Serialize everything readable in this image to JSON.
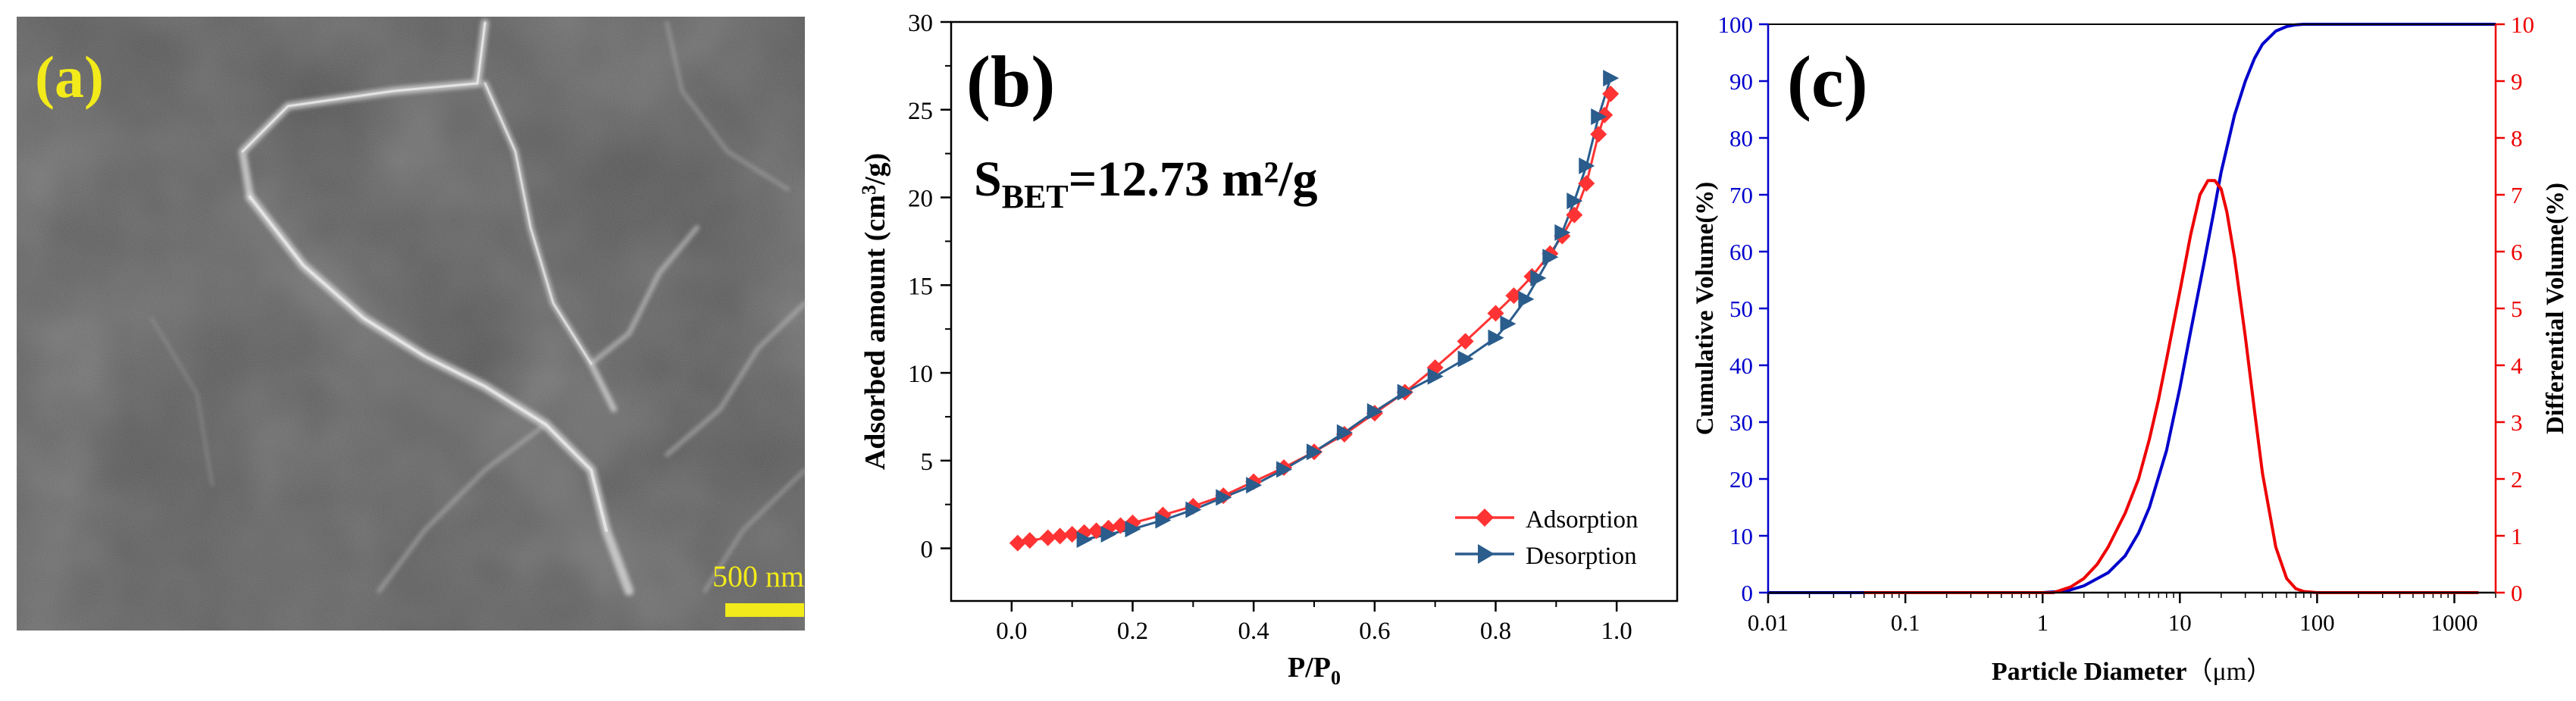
{
  "panel_a": {
    "label": "(a)",
    "scale_bar_text": "500 nm",
    "label_color": "#f2ea1a",
    "image_description": "SEM micrograph"
  },
  "chart_data": [
    {
      "type": "line",
      "panel": "(b)",
      "title": "",
      "annotation": {
        "main": "S",
        "subscript": "BET",
        "value": "=12.73 m²/g"
      },
      "xlabel": {
        "main": "P/P",
        "subscript": "0"
      },
      "ylabel": {
        "pre": "Adsorbed amount (cm",
        "superscript": "3",
        "post": "/g)"
      },
      "xlim": [
        -0.1,
        1.1
      ],
      "ylim": [
        -3,
        30
      ],
      "xticks": [
        0.0,
        0.2,
        0.4,
        0.6,
        0.8,
        1.0
      ],
      "xtick_labels": [
        "0.0",
        "0.2",
        "0.4",
        "0.6",
        "0.8",
        "1.0"
      ],
      "yticks": [
        0,
        5,
        10,
        15,
        20,
        25,
        30
      ],
      "ytick_labels": [
        "0",
        "5",
        "10",
        "15",
        "20",
        "25",
        "30"
      ],
      "legend_position": "bottom-right",
      "series": [
        {
          "name": "Adsorption",
          "color": "#ff3333",
          "marker": "diamond",
          "x": [
            0.01,
            0.03,
            0.06,
            0.08,
            0.1,
            0.12,
            0.14,
            0.16,
            0.18,
            0.2,
            0.25,
            0.3,
            0.35,
            0.4,
            0.45,
            0.5,
            0.55,
            0.6,
            0.65,
            0.7,
            0.75,
            0.8,
            0.83,
            0.86,
            0.89,
            0.91,
            0.93,
            0.95,
            0.97,
            0.98,
            0.99
          ],
          "y": [
            0.3,
            0.45,
            0.6,
            0.7,
            0.8,
            0.9,
            1.0,
            1.15,
            1.3,
            1.45,
            1.9,
            2.4,
            3.0,
            3.8,
            4.6,
            5.5,
            6.5,
            7.7,
            8.9,
            10.3,
            11.8,
            13.4,
            14.4,
            15.5,
            16.8,
            17.8,
            19.0,
            20.8,
            23.6,
            24.7,
            25.9
          ]
        },
        {
          "name": "Desorption",
          "color": "#2a5c8c",
          "marker": "triangle-right",
          "x": [
            0.99,
            0.97,
            0.95,
            0.93,
            0.91,
            0.89,
            0.87,
            0.85,
            0.82,
            0.8,
            0.75,
            0.7,
            0.65,
            0.6,
            0.55,
            0.5,
            0.45,
            0.4,
            0.35,
            0.3,
            0.25,
            0.2,
            0.16,
            0.12
          ],
          "y": [
            26.8,
            24.6,
            21.8,
            19.8,
            18.0,
            16.6,
            15.4,
            14.2,
            12.8,
            12.0,
            10.8,
            9.8,
            8.9,
            7.8,
            6.6,
            5.5,
            4.5,
            3.6,
            2.9,
            2.2,
            1.6,
            1.1,
            0.8,
            0.5
          ]
        }
      ]
    },
    {
      "type": "line",
      "panel": "(c)",
      "title": "",
      "xlabel": {
        "main": "Particle Diameter",
        "unit": "（μm）"
      },
      "ylabel_left": "Cumulative Volume(%)",
      "ylabel_right": "Differential Volume(%)",
      "x_scale": "log",
      "xlim": [
        0.01,
        2000
      ],
      "ylim_left": [
        0,
        100
      ],
      "ylim_right": [
        0,
        10
      ],
      "xticks": [
        0.01,
        0.1,
        1,
        10,
        100,
        1000
      ],
      "xtick_labels": [
        "0.01",
        "0.1",
        "1",
        "10",
        "100",
        "1000"
      ],
      "yticks_left": [
        0,
        10,
        20,
        30,
        40,
        50,
        60,
        70,
        80,
        90,
        100
      ],
      "ytick_labels_left": [
        "0",
        "10",
        "20",
        "30",
        "40",
        "50",
        "60",
        "70",
        "80",
        "90",
        "100"
      ],
      "yticks_right": [
        0,
        1,
        2,
        3,
        4,
        5,
        6,
        7,
        8,
        9,
        10
      ],
      "ytick_labels_right": [
        "0",
        "1",
        "2",
        "3",
        "4",
        "5",
        "6",
        "7",
        "8",
        "9",
        "10"
      ],
      "left_axis_color": "#0000cc",
      "right_axis_color": "#ee0000",
      "series": [
        {
          "name": "Cumulative Volume",
          "axis": "left",
          "color": "#0000cc",
          "x": [
            0.01,
            1.0,
            1.5,
            2,
            3,
            4,
            5,
            6,
            8,
            10,
            12,
            15,
            18,
            20,
            25,
            30,
            35,
            40,
            50,
            60,
            70,
            80,
            100,
            120,
            150,
            2000
          ],
          "y": [
            0,
            0,
            0.3,
            1.2,
            3.5,
            6.5,
            10.5,
            15,
            25,
            36,
            46,
            58,
            68,
            74,
            84,
            90,
            94,
            96.5,
            98.8,
            99.6,
            99.9,
            100,
            100,
            100,
            100,
            100
          ]
        },
        {
          "name": "Differential Volume",
          "axis": "right",
          "color": "#ee0000",
          "x": [
            0.05,
            1.2,
            1.6,
            2,
            2.5,
            3,
            4,
            5,
            6,
            7,
            8,
            10,
            12,
            14,
            16,
            18,
            20,
            22,
            25,
            30,
            35,
            40,
            50,
            60,
            70,
            80,
            100,
            1500
          ],
          "y": [
            0,
            0,
            0.1,
            0.25,
            0.5,
            0.8,
            1.4,
            2.0,
            2.7,
            3.4,
            4.1,
            5.3,
            6.3,
            7.0,
            7.25,
            7.25,
            7.1,
            6.7,
            5.9,
            4.5,
            3.2,
            2.1,
            0.8,
            0.25,
            0.07,
            0.02,
            0,
            0
          ]
        }
      ]
    }
  ]
}
